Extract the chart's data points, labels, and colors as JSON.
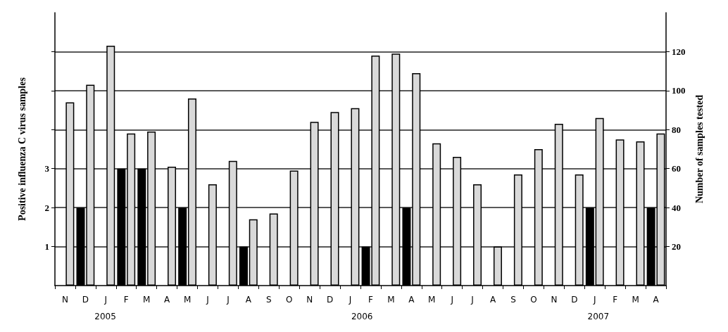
{
  "chart_data": {
    "type": "bar",
    "categories": [
      "N",
      "D",
      "J",
      "F",
      "M",
      "A",
      "M",
      "J",
      "J",
      "A",
      "S",
      "O",
      "N",
      "D",
      "J",
      "F",
      "M",
      "A",
      "M",
      "J",
      "J",
      "A",
      "S",
      "O",
      "N",
      "D",
      "J",
      "F",
      "M",
      "A"
    ],
    "series": [
      {
        "color": "#000000",
        "values": [
          null,
          2,
          null,
          3,
          3,
          null,
          2,
          null,
          null,
          1,
          null,
          null,
          null,
          null,
          null,
          1,
          null,
          2,
          null,
          null,
          null,
          null,
          null,
          null,
          null,
          null,
          2,
          null,
          null,
          2
        ]
      },
      {
        "color": "#d9d9d9",
        "axis": "y2",
        "values": [
          94,
          103,
          123,
          78,
          79,
          61,
          96,
          52,
          64,
          34,
          37,
          59,
          84,
          89,
          91,
          118,
          119,
          109,
          73,
          66,
          52,
          20,
          57,
          70,
          83,
          57,
          86,
          75,
          74,
          78
        ]
      }
    ],
    "ylabel": "Positive influenza C virus samples",
    "y2label": "Number of samples tested",
    "ylim": [
      0,
      7
    ],
    "yticks": [
      1,
      2,
      3,
      {
        "value": 4,
        "label": null
      },
      {
        "value": 5,
        "label": null
      },
      {
        "value": 6,
        "label": null
      }
    ],
    "y2lim": [
      0,
      140
    ],
    "y2ticks": [
      20,
      40,
      60,
      80,
      100,
      120
    ],
    "grid": "y2",
    "annotations": [
      "2005",
      "2006",
      "2007"
    ]
  }
}
